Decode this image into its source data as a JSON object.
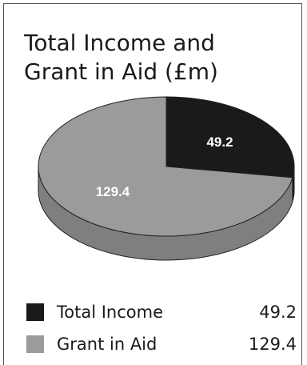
{
  "chart_data": {
    "type": "pie",
    "title": "Total Income and Grant in Aid (£m)",
    "title_lines": [
      "Total Income and",
      "Grant in Aid (£m)"
    ],
    "slices": [
      {
        "label": "Total Income",
        "value": 49.2,
        "value_label": "49.2",
        "color": "#1a1a1a"
      },
      {
        "label": "Grant in Aid",
        "value": 129.4,
        "value_label": "129.4",
        "color": "#9b9b9b"
      }
    ],
    "legend": [
      {
        "label": "Total Income",
        "value": "49.2",
        "color": "#1a1a1a"
      },
      {
        "label": "Grant in Aid",
        "value": "129.4",
        "color": "#9b9b9b"
      }
    ],
    "legend_placement": "bottom"
  }
}
